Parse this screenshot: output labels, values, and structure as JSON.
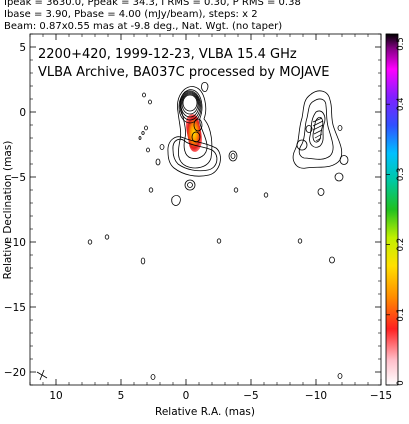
{
  "header": {
    "line1": "Ipeak = 3630.0, Ppeak = 34.3, I RMS = 0.30, P RMS = 0.38",
    "line2": "Ibase = 3.90, Pbase = 4.00 (mJy/beam), steps: x 2",
    "line3": "Beam: 0.87x0.55 mas at -9.8 deg., Nat. Wgt. (no taper)"
  },
  "chart_data": {
    "type": "contour",
    "title": "2200+420, 1999-12-23, VLBA 15.4 GHz",
    "subtitle": "VLBA Archive, BA037C processed by MOJAVE",
    "xlabel": "Relative R.A. (mas)",
    "ylabel": "Relative Declination (mas)",
    "xlim": [
      12,
      -15
    ],
    "ylim": [
      -21,
      6
    ],
    "x_ticks": [
      10,
      5,
      0,
      -5,
      -10,
      -15
    ],
    "y_ticks": [
      5,
      0,
      -5,
      -10,
      -15,
      -20
    ],
    "x_tick_labels": [
      "10",
      "5",
      "0",
      "−5",
      "−10",
      "−15"
    ],
    "y_tick_labels": [
      "5",
      "0",
      "−5",
      "−10",
      "−15",
      "−20"
    ],
    "colorbar": {
      "range": [
        0,
        0.5
      ],
      "ticks": [
        0,
        0.1,
        0.2,
        0.3,
        0.4,
        0.5
      ],
      "tick_labels": [
        "0",
        "0.1",
        "0.2",
        "0.3",
        "0.4",
        "0.5"
      ]
    },
    "core": {
      "x": 0,
      "y": 0
    },
    "jet_components": [
      {
        "x": -0.5,
        "y": -1.5
      },
      {
        "x": -0.8,
        "y": -2.6
      },
      {
        "x": -0.4,
        "y": -3.8
      }
    ],
    "secondary_feature": {
      "x": -10,
      "y": -1.5
    },
    "beam": {
      "major": 0.87,
      "minor": 0.55,
      "pa": -9.8
    }
  }
}
